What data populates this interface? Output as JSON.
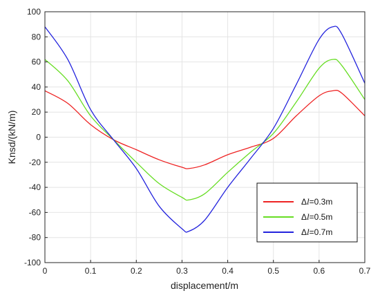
{
  "chart_data": {
    "type": "line",
    "xlabel": "displacement/m",
    "ylabel": "Knsd/(kN/m)",
    "xlim": [
      0,
      0.7
    ],
    "ylim": [
      -100,
      100
    ],
    "x_ticks": [
      0,
      0.1,
      0.2,
      0.3,
      0.4,
      0.5,
      0.6,
      0.7
    ],
    "x_tick_labels": [
      "0",
      "0.1",
      "0.2",
      "0.3",
      "0.4",
      "0.5",
      "0.6",
      "0.7"
    ],
    "y_ticks": [
      -100,
      -80,
      -60,
      -40,
      -20,
      0,
      20,
      40,
      60,
      80,
      100
    ],
    "y_tick_labels": [
      "-100",
      "-80",
      "-60",
      "-40",
      "-20",
      "0",
      "20",
      "40",
      "60",
      "80",
      "100"
    ],
    "grid": true,
    "legend_position": "bottom-right",
    "x": [
      0,
      0.05,
      0.1,
      0.15,
      0.2,
      0.25,
      0.3,
      0.315,
      0.35,
      0.4,
      0.45,
      0.5,
      0.55,
      0.6,
      0.63,
      0.65,
      0.7
    ],
    "series": [
      {
        "name": "Δl=0.3m",
        "name_prefix": "Δ",
        "name_var": "l",
        "name_suffix": "=0.3m",
        "color": "#ee2222",
        "values": [
          37,
          27,
          10,
          -2,
          -10,
          -18,
          -24,
          -25,
          -22,
          -14,
          -8,
          -1,
          17,
          33,
          37,
          35,
          17
        ]
      },
      {
        "name": "Δl=0.5m",
        "name_prefix": "Δ",
        "name_var": "l",
        "name_suffix": "=0.5m",
        "color": "#66dd22",
        "values": [
          62,
          45,
          17,
          -2,
          -20,
          -37,
          -48,
          -50,
          -45,
          -28,
          -12,
          3,
          28,
          55,
          62,
          57,
          30
        ]
      },
      {
        "name": "Δl=0.7m",
        "name_prefix": "Δ",
        "name_var": "l",
        "name_suffix": "=0.7m",
        "color": "#2222dd",
        "values": [
          88,
          62,
          22,
          -2,
          -25,
          -55,
          -73,
          -75,
          -66,
          -40,
          -17,
          7,
          42,
          78,
          88,
          82,
          43
        ]
      }
    ]
  }
}
